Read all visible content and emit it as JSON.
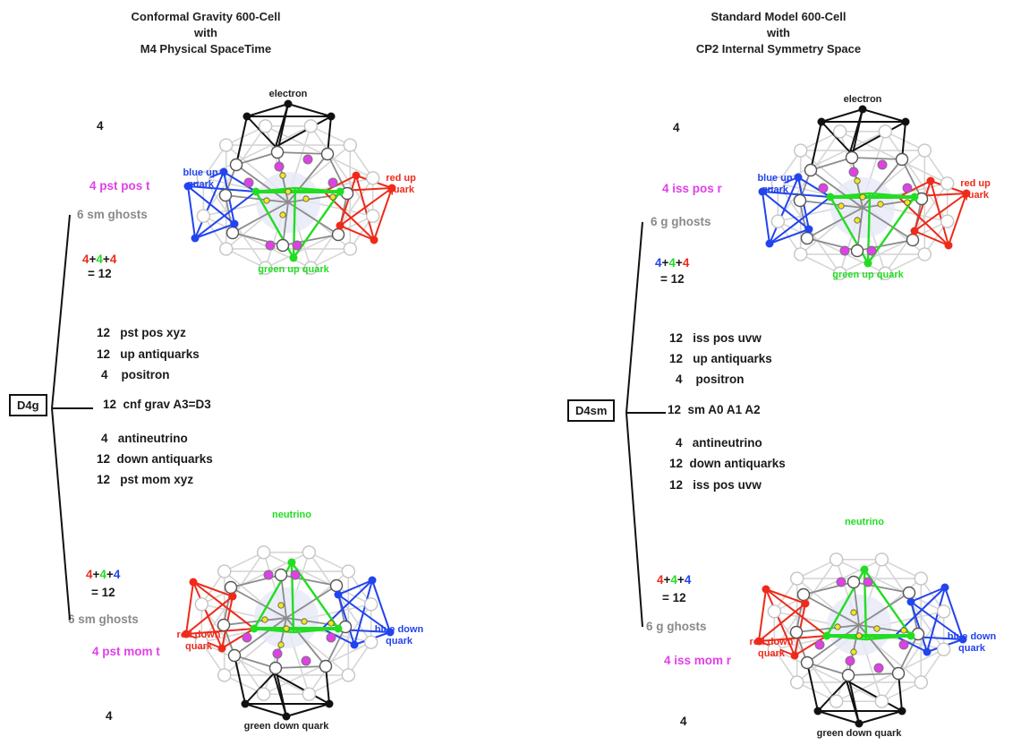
{
  "left": {
    "title": [
      "Conformal Gravity 600-Cell",
      "with",
      "M4 Physical SpaceTime"
    ],
    "box": "D4g",
    "top_count": "4",
    "top_pos": "4 pst pos t",
    "ghosts_top": "6 sm ghosts",
    "sum_top": {
      "a": "4",
      "b": "4",
      "c": "4",
      "eq": "= 12"
    },
    "rows": [
      {
        "n": "12",
        "label": "pst pos xyz"
      },
      {
        "n": "12",
        "label": "up antiquarks"
      },
      {
        "n": "4",
        "label": "positron"
      },
      {
        "n": "12",
        "label": "cnf grav A3=D3"
      },
      {
        "n": "4",
        "label": "antineutrino"
      },
      {
        "n": "12",
        "label": "down antiquarks"
      },
      {
        "n": "12",
        "label": "pst mom xyz"
      }
    ],
    "sum_bottom": {
      "a": "4",
      "b": "4",
      "c": "4",
      "eq": "= 12"
    },
    "ghosts_bottom": "6 sm ghosts",
    "bottom_mom": "4 pst mom t",
    "bottom_count": "4",
    "upper_fig": {
      "top": "electron",
      "left": "blue up\nquark",
      "right": "red up\nquark",
      "bottom": "green up quark"
    },
    "lower_fig": {
      "top": "green down quark",
      "left": "red down\nquark",
      "right": "blue down\nquark",
      "bottom": "neutrino"
    }
  },
  "right": {
    "title": [
      "Standard Model 600-Cell",
      "with",
      "CP2 Internal Symmetry Space"
    ],
    "box": "D4sm",
    "top_count": "4",
    "top_pos": "4 iss pos r",
    "ghosts_top": "6 g ghosts",
    "sum_top": {
      "a": "4",
      "b": "4",
      "c": "4",
      "eq": "= 12"
    },
    "rows": [
      {
        "n": "12",
        "label": "iss pos uvw"
      },
      {
        "n": "12",
        "label": "up antiquarks"
      },
      {
        "n": "4",
        "label": "positron"
      },
      {
        "n": "12",
        "label": "sm A0 A1 A2"
      },
      {
        "n": "4",
        "label": "antineutrino"
      },
      {
        "n": "12",
        "label": "down antiquarks"
      },
      {
        "n": "12",
        "label": "iss pos uvw"
      }
    ],
    "sum_bottom": {
      "a": "4",
      "b": "4",
      "c": "4",
      "eq": "= 12"
    },
    "ghosts_bottom": "6 g ghosts",
    "bottom_mom": "4 iss mom r",
    "bottom_count": "4",
    "upper_fig": {
      "top": "electron",
      "left": "blue up\nquark",
      "right": "red up\nquark",
      "bottom": "green up quark"
    },
    "lower_fig": {
      "top": "green down quark",
      "left": "red down\nquark",
      "right": "blue down\nquark",
      "bottom": "neutrino"
    }
  },
  "colors": {
    "red": "#ee2a1a",
    "green": "#22dd22",
    "blue": "#2244ee",
    "magenta": "#e040e8",
    "gray": "#8a8a8a",
    "black": "#111111",
    "yellow": "#f2e61c",
    "lightgray": "#c8c8c8"
  }
}
